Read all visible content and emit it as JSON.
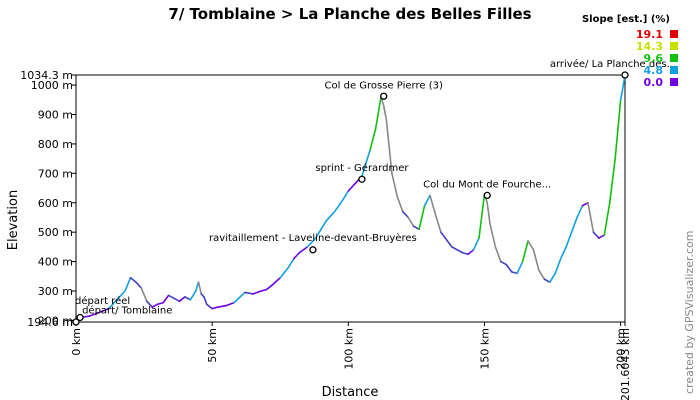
{
  "chart_data": {
    "type": "line",
    "title": "7/ Tomblaine > La Planche des Belles Filles",
    "xlabel": "Distance",
    "ylabel": "Elevation",
    "xlim": [
      0,
      201.6043
    ],
    "ylim": [
      194.6,
      1034.3
    ],
    "x_ticks": [
      {
        "value": 0,
        "label": "0 km"
      },
      {
        "value": 50,
        "label": "50 km"
      },
      {
        "value": 100,
        "label": "100 km"
      },
      {
        "value": 150,
        "label": "150 km"
      },
      {
        "value": 200,
        "label": "200 km"
      },
      {
        "value": 201.6043,
        "label": "201.6043 km"
      }
    ],
    "y_ticks": [
      {
        "value": 194.6,
        "label": "194.6 m"
      },
      {
        "value": 200,
        "label": "200 m"
      },
      {
        "value": 300,
        "label": "300 m"
      },
      {
        "value": 400,
        "label": "400 m"
      },
      {
        "value": 500,
        "label": "500 m"
      },
      {
        "value": 600,
        "label": "600 m"
      },
      {
        "value": 700,
        "label": "700 m"
      },
      {
        "value": 800,
        "label": "800 m"
      },
      {
        "value": 900,
        "label": "900 m"
      },
      {
        "value": 1000,
        "label": "1000 m"
      },
      {
        "value": 1034.3,
        "label": "1034.3 m"
      }
    ],
    "series": [
      {
        "x": [
          0,
          2,
          5,
          8,
          12,
          15,
          18,
          20,
          22,
          24,
          26,
          28,
          30,
          32,
          34,
          36,
          38,
          40,
          42,
          44,
          45,
          46,
          47,
          48,
          50,
          52,
          55,
          58,
          62,
          65,
          68,
          70,
          72,
          75,
          78,
          80,
          82,
          85,
          88,
          90,
          92,
          95,
          98,
          100,
          102,
          104,
          105,
          106,
          108,
          110,
          112,
          113,
          114,
          116,
          118,
          120,
          122,
          124,
          126,
          128,
          130,
          132,
          134,
          136,
          138,
          140,
          142,
          144,
          146,
          148,
          150,
          151,
          152,
          154,
          156,
          158,
          160,
          162,
          164,
          166,
          168,
          170,
          172,
          174,
          176,
          178,
          180,
          182,
          184,
          186,
          188,
          190,
          192,
          194,
          196,
          198,
          199,
          200,
          201,
          201.6043
        ],
        "y": [
          194.6,
          210,
          215,
          225,
          240,
          270,
          300,
          345,
          330,
          310,
          265,
          245,
          255,
          260,
          285,
          275,
          265,
          280,
          270,
          300,
          330,
          290,
          280,
          255,
          240,
          245,
          250,
          260,
          295,
          290,
          300,
          305,
          320,
          345,
          380,
          410,
          430,
          450,
          480,
          510,
          540,
          570,
          610,
          640,
          660,
          680,
          690,
          720,
          780,
          850,
          960,
          930,
          880,
          700,
          620,
          570,
          550,
          520,
          510,
          590,
          625,
          560,
          500,
          475,
          450,
          440,
          430,
          425,
          440,
          480,
          630,
          600,
          530,
          450,
          400,
          390,
          365,
          360,
          400,
          470,
          440,
          370,
          340,
          330,
          360,
          410,
          450,
          500,
          550,
          590,
          600,
          500,
          480,
          490,
          600,
          750,
          850,
          950,
          1000,
          1034.3
        ]
      }
    ],
    "annotations": [
      {
        "x": 0,
        "y": 194.6,
        "label": "départ réel",
        "anchor": "start"
      },
      {
        "x": 1.5,
        "y": 210,
        "label": "départ/ Tomblaine",
        "anchor": "start"
      },
      {
        "x": 105,
        "y": 680,
        "label": "sprint - Gérardmer",
        "anchor": "middle"
      },
      {
        "x": 87,
        "y": 440,
        "label": "ravitaillement - Laveline-devant-Bruyères",
        "anchor": "middle"
      },
      {
        "x": 113,
        "y": 962,
        "label": "Col de Grosse Pierre (3)",
        "anchor": "middle"
      },
      {
        "x": 151,
        "y": 625,
        "label": "Col du Mont de Fourche...",
        "anchor": "middle"
      },
      {
        "x": 201.6043,
        "y": 1034.3,
        "label": "arrivée/ La Planche des...",
        "anchor": "middle"
      }
    ],
    "legend": {
      "title": "Slope [est.] (%)",
      "placement": "top-right",
      "items": [
        {
          "label": "19.1",
          "color": "#e00000"
        },
        {
          "label": "14.3",
          "color": "#c8e000"
        },
        {
          "label": "9.6",
          "color": "#10c010"
        },
        {
          "label": "4.8",
          "color": "#10a0e0"
        },
        {
          "label": "0.0",
          "color": "#7000e0"
        }
      ]
    },
    "grid": false,
    "credit": "created by GPSVisualizer.com"
  }
}
